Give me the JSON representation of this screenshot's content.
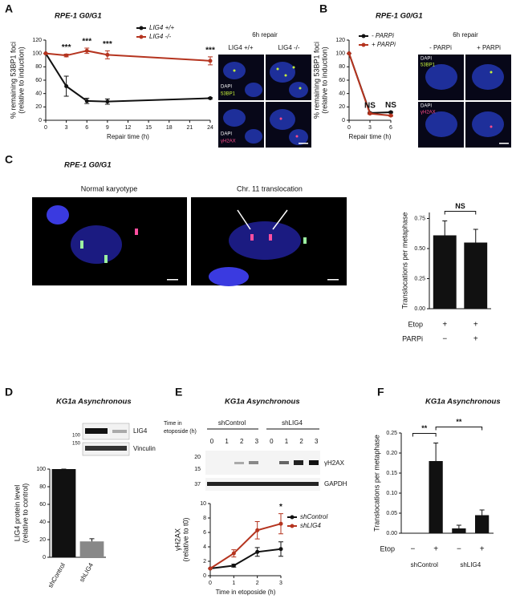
{
  "panel_labels": [
    "A",
    "B",
    "C",
    "D",
    "E",
    "F"
  ],
  "microscopy": {
    "A": {
      "header": "6h repair",
      "columns": [
        "LIG4 +/+",
        "LIG4 -/-"
      ],
      "stains_top": [
        "DAPI",
        "53BP1"
      ],
      "stains_bottom": [
        "DAPI",
        "γH2AX"
      ]
    },
    "B": {
      "header": "6h repair",
      "columns": [
        "- PARPi",
        "+ PARPi"
      ],
      "stains_top": [
        "DAPI",
        "53BP1"
      ],
      "stains_bottom": [
        "DAPI",
        "γH2AX"
      ]
    },
    "C": {
      "title": "RPE-1 G0/G1",
      "columns": [
        "Normal karyotype",
        "Chr. 11 translocation"
      ]
    }
  },
  "blots": {
    "D": {
      "markers": [
        "100",
        "150"
      ],
      "bands": [
        "LIG4",
        "Vinculin"
      ]
    },
    "E": {
      "row_label": [
        "Time in",
        "etoposide (h)"
      ],
      "groups": [
        "shControl",
        "shLIG4"
      ],
      "lanes": [
        "0",
        "1",
        "2",
        "3",
        "0",
        "1",
        "2",
        "3"
      ],
      "markers": [
        "20",
        "15",
        "37"
      ],
      "bands": [
        "γH2AX",
        "GAPDH"
      ]
    }
  },
  "chart_data": [
    {
      "type": "line",
      "title": "RPE-1 G0/G1",
      "y_label": [
        "% remaining 53BP1 foci",
        "(relative to induction)"
      ],
      "x_label": "Repair time (h)",
      "x": [
        0,
        3,
        6,
        9,
        24
      ],
      "xlim": [
        0,
        24
      ],
      "xticks": [
        0,
        3,
        6,
        9,
        12,
        15,
        18,
        21,
        24
      ],
      "ylim": [
        0,
        120
      ],
      "yticks": [
        0,
        20,
        40,
        60,
        80,
        100,
        120
      ],
      "series": [
        {
          "name": "LIG4 +/+",
          "color": "#111111",
          "values": [
            100,
            51,
            29,
            28,
            33
          ],
          "errors": [
            0,
            15,
            4,
            4,
            1
          ]
        },
        {
          "name": "LIG4 -/-",
          "color": "#b5341f",
          "values": [
            100,
            97,
            104,
            98,
            89
          ],
          "errors": [
            0,
            2,
            4,
            6,
            6
          ]
        }
      ],
      "significance": [
        null,
        "***",
        "***",
        "***",
        "***"
      ],
      "legend": "upper right"
    },
    {
      "type": "line",
      "title": "RPE-1 G0/G1",
      "y_label": [
        "% remaining 53BP1 foci",
        "(relative to induction)"
      ],
      "x_label": "Repair time (h)",
      "x": [
        0,
        3,
        6
      ],
      "xlim": [
        0,
        6
      ],
      "xticks": [
        0,
        3,
        6
      ],
      "ylim": [
        0,
        120
      ],
      "yticks": [
        0,
        20,
        40,
        60,
        80,
        100,
        120
      ],
      "series": [
        {
          "name": "- PARPi",
          "color": "#111111",
          "values": [
            100,
            11,
            12
          ],
          "errors": [
            0,
            1,
            1
          ]
        },
        {
          "name": "+ PARPi",
          "color": "#b5341f",
          "values": [
            100,
            10,
            7
          ],
          "errors": [
            0,
            1,
            1
          ]
        }
      ],
      "significance": [
        null,
        "NS",
        "NS"
      ],
      "legend": "upper right"
    },
    {
      "type": "bar",
      "y_label": [
        "Translocations per metaphase"
      ],
      "categories": [
        null,
        null
      ],
      "values": [
        0.61,
        0.55
      ],
      "errors": [
        0.12,
        0.11
      ],
      "colors": [
        "#111111",
        "#111111"
      ],
      "ylim": [
        0,
        0.8
      ],
      "yticks": [
        {
          "value": 0,
          "label": "0.00"
        },
        {
          "value": 0.25,
          "label": "0.25"
        },
        {
          "value": 0.5,
          "label": "0.50"
        },
        {
          "value": 0.75,
          "label": "0.75"
        }
      ],
      "rows": [
        {
          "label": "Etop",
          "marks": [
            "+",
            "+"
          ]
        },
        {
          "label": "PARPi",
          "marks": [
            "−",
            "+"
          ]
        }
      ],
      "brackets": [
        {
          "bars": [
            0,
            1
          ],
          "text": "NS"
        }
      ]
    },
    {
      "type": "bar",
      "title": "KG1a Asynchronous",
      "y_label": [
        "LIG4 protein level",
        "(relative to control)"
      ],
      "categories": [
        "shControl",
        "shLIG4"
      ],
      "values": [
        100,
        18
      ],
      "errors": [
        0,
        3
      ],
      "colors": [
        "#111111",
        "#888888"
      ],
      "ylim": [
        0,
        100
      ],
      "yticks": [
        0,
        20,
        40,
        60,
        80,
        100
      ]
    },
    {
      "type": "line",
      "title": "KG1a Asynchronous",
      "y_label": [
        "γH2AX",
        "(relative to t0)"
      ],
      "x_label": "Time in etoposide (h)",
      "x": [
        0,
        1,
        2,
        3
      ],
      "xlim": [
        0,
        3
      ],
      "xticks": [
        0,
        1,
        2,
        3
      ],
      "ylim": [
        0,
        10
      ],
      "yticks": [
        0,
        2,
        4,
        6,
        8,
        10
      ],
      "series": [
        {
          "name": "shControl",
          "color": "#111111",
          "values": [
            1,
            1.4,
            3.3,
            3.7
          ],
          "errors": [
            0,
            0.2,
            0.6,
            1.0
          ]
        },
        {
          "name": "shLIG4",
          "color": "#b5341f",
          "values": [
            1,
            3.1,
            6.3,
            7.2
          ],
          "errors": [
            0,
            0.5,
            1.2,
            1.4
          ]
        }
      ],
      "significance": [
        null,
        null,
        null,
        "*"
      ],
      "legend": "right"
    },
    {
      "type": "bar",
      "title": "KG1a Asynchronous",
      "y_label": [
        "Translocations per metaphase"
      ],
      "categories": [
        null,
        null,
        null,
        null
      ],
      "values": [
        0,
        0.18,
        0.012,
        0.045
      ],
      "errors": [
        0,
        0.045,
        0.008,
        0.013
      ],
      "colors": [
        "#111111",
        "#111111",
        "#111111",
        "#111111"
      ],
      "ylim": [
        0,
        0.25
      ],
      "yticks": [
        {
          "value": 0,
          "label": "0.00"
        },
        {
          "value": 0.05,
          "label": "0.05"
        },
        {
          "value": 0.1,
          "label": "0.10"
        },
        {
          "value": 0.15,
          "label": "0.15"
        },
        {
          "value": 0.2,
          "label": "0.20"
        },
        {
          "value": 0.25,
          "label": "0.25"
        }
      ],
      "rows": [
        {
          "label": "Etop",
          "marks": [
            "−",
            "+",
            "−",
            "+"
          ]
        }
      ],
      "groups": [
        "shControl",
        "shLIG4"
      ],
      "brackets": [
        {
          "bars": [
            0,
            1
          ],
          "text": "**"
        },
        {
          "bars": [
            1,
            3
          ],
          "text": "**"
        }
      ]
    }
  ]
}
